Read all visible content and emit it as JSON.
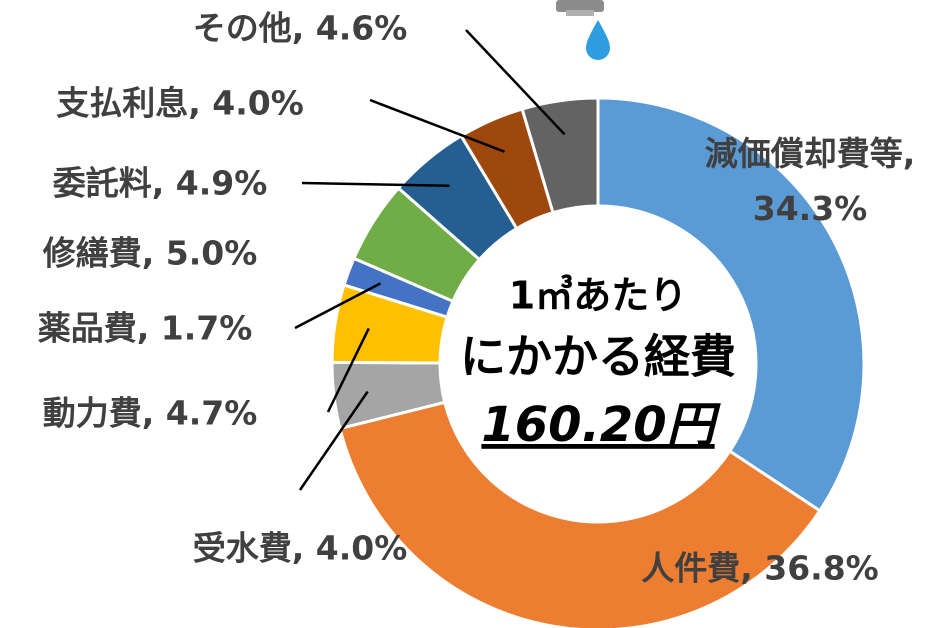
{
  "chart_data": {
    "type": "donut",
    "values": [
      34.3,
      36.8,
      4.0,
      4.7,
      1.7,
      5.0,
      4.9,
      4.0,
      4.6
    ],
    "value_labels": [
      "減価償却費等, 34.3%",
      "人件費, 36.8%",
      "受水費, 4.0%",
      "動力費, 4.7%",
      "薬品費, 1.7%",
      "修繕費, 5.0%",
      "委託料, 4.9%",
      "支払利息, 4.0%",
      "その他, 4.6%"
    ],
    "colors": [
      "#5b9bd5",
      "#ed7d31",
      "#a5a5a5",
      "#ffc000",
      "#4472c4",
      "#70ad47",
      "#255e91",
      "#9e480e",
      "#636363"
    ],
    "center_text": {
      "line1": "1㎥あたり",
      "line2": "にかかる経費",
      "line3": "160.20円"
    }
  }
}
